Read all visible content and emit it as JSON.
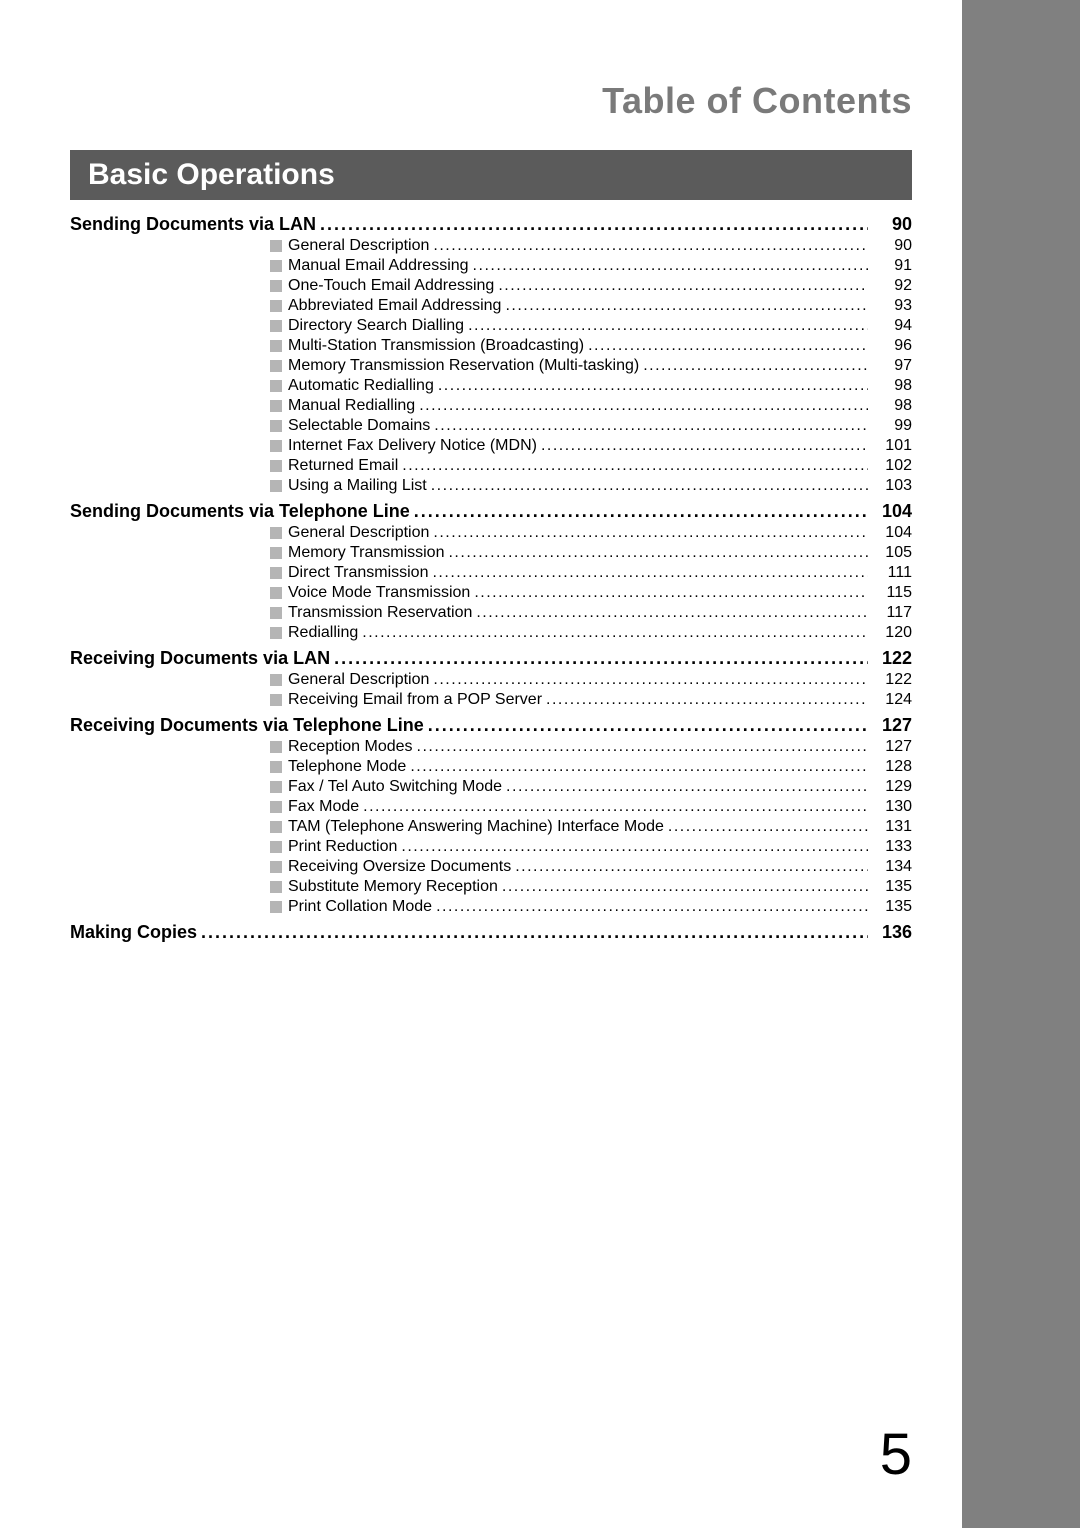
{
  "pageTitle": "Table of Contents",
  "chapterTitle": "Basic Operations",
  "pageNumber": "5",
  "sections": [
    {
      "title": "Sending Documents via LAN",
      "page": "90",
      "items": [
        {
          "title": "General Description",
          "page": "90"
        },
        {
          "title": "Manual Email Addressing",
          "page": "91"
        },
        {
          "title": "One-Touch Email Addressing",
          "page": "92"
        },
        {
          "title": "Abbreviated Email Addressing",
          "page": "93"
        },
        {
          "title": "Directory Search Dialling",
          "page": "94"
        },
        {
          "title": "Multi-Station Transmission (Broadcasting)",
          "page": "96"
        },
        {
          "title": "Memory Transmission Reservation (Multi-tasking)",
          "page": "97"
        },
        {
          "title": "Automatic Redialling",
          "page": "98"
        },
        {
          "title": "Manual Redialling",
          "page": "98"
        },
        {
          "title": "Selectable Domains",
          "page": "99"
        },
        {
          "title": "Internet Fax Delivery Notice (MDN)",
          "page": "101"
        },
        {
          "title": "Returned Email",
          "page": "102"
        },
        {
          "title": "Using a Mailing List",
          "page": "103"
        }
      ]
    },
    {
      "title": "Sending Documents via Telephone Line",
      "page": "104",
      "items": [
        {
          "title": "General Description",
          "page": "104"
        },
        {
          "title": "Memory Transmission",
          "page": "105"
        },
        {
          "title": "Direct Transmission",
          "page": "111"
        },
        {
          "title": "Voice Mode Transmission",
          "page": "115"
        },
        {
          "title": "Transmission Reservation",
          "page": "117"
        },
        {
          "title": "Redialling",
          "page": "120"
        }
      ]
    },
    {
      "title": "Receiving Documents via LAN",
      "page": "122",
      "items": [
        {
          "title": "General Description",
          "page": "122"
        },
        {
          "title": "Receiving Email from a POP Server",
          "page": "124"
        }
      ]
    },
    {
      "title": "Receiving Documents via Telephone Line",
      "page": "127",
      "items": [
        {
          "title": "Reception Modes",
          "page": "127"
        },
        {
          "title": "Telephone Mode",
          "page": "128"
        },
        {
          "title": "Fax / Tel Auto Switching Mode",
          "page": "129"
        },
        {
          "title": "Fax Mode",
          "page": "130"
        },
        {
          "title": "TAM (Telephone Answering Machine) Interface Mode",
          "page": "131"
        },
        {
          "title": "Print Reduction",
          "page": "133"
        },
        {
          "title": "Receiving Oversize Documents",
          "page": "134"
        },
        {
          "title": "Substitute Memory Reception",
          "page": "135"
        },
        {
          "title": "Print Collation Mode",
          "page": "135"
        }
      ]
    },
    {
      "title": "Making Copies",
      "page": "136",
      "items": []
    }
  ]
}
